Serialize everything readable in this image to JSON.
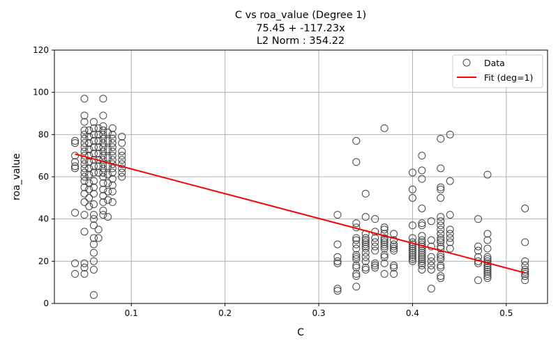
{
  "chart_data": {
    "type": "scatter",
    "title_lines": [
      "C vs roa_value (Degree 1)",
      "75.45 + -117.23x",
      "L2 Norm : 354.22"
    ],
    "xlabel": "C",
    "ylabel": "roa_value",
    "xlim": [
      0.018,
      0.544
    ],
    "ylim": [
      0,
      120
    ],
    "x_ticks": [
      0.1,
      0.2,
      0.3,
      0.4,
      0.5
    ],
    "x_tick_labels": [
      "0.1",
      "0.2",
      "0.3",
      "0.4",
      "0.5"
    ],
    "y_ticks": [
      0,
      20,
      40,
      60,
      80,
      100,
      120
    ],
    "y_tick_labels": [
      "0",
      "20",
      "40",
      "60",
      "80",
      "100",
      "120"
    ],
    "grid": true,
    "legend_position": "top-right",
    "legend": [
      {
        "label": "Data",
        "kind": "hollow-circle",
        "color": "#444444"
      },
      {
        "label": "Fit (deg=1)",
        "kind": "line",
        "color": "#ff0000"
      }
    ],
    "fit": {
      "intercept": 75.45,
      "slope": -117.23,
      "x_start": 0.04,
      "x_end": 0.52,
      "color": "#ff0000"
    },
    "series": [
      {
        "name": "Data",
        "marker": "hollow-circle",
        "color": "#444444",
        "points": [
          [
            0.04,
            77
          ],
          [
            0.04,
            76
          ],
          [
            0.04,
            70
          ],
          [
            0.04,
            67
          ],
          [
            0.04,
            65
          ],
          [
            0.04,
            64
          ],
          [
            0.04,
            43
          ],
          [
            0.04,
            19
          ],
          [
            0.04,
            14
          ],
          [
            0.05,
            97
          ],
          [
            0.05,
            89
          ],
          [
            0.05,
            86
          ],
          [
            0.05,
            82
          ],
          [
            0.05,
            80
          ],
          [
            0.05,
            78
          ],
          [
            0.05,
            76
          ],
          [
            0.05,
            74
          ],
          [
            0.05,
            72
          ],
          [
            0.05,
            70
          ],
          [
            0.05,
            68
          ],
          [
            0.05,
            66
          ],
          [
            0.05,
            64
          ],
          [
            0.05,
            62
          ],
          [
            0.05,
            60
          ],
          [
            0.05,
            58
          ],
          [
            0.05,
            55
          ],
          [
            0.05,
            52
          ],
          [
            0.05,
            48
          ],
          [
            0.05,
            42
          ],
          [
            0.05,
            34
          ],
          [
            0.05,
            19
          ],
          [
            0.05,
            17
          ],
          [
            0.05,
            14
          ],
          [
            0.055,
            82
          ],
          [
            0.055,
            79
          ],
          [
            0.055,
            76
          ],
          [
            0.055,
            73
          ],
          [
            0.055,
            70
          ],
          [
            0.055,
            67
          ],
          [
            0.055,
            64
          ],
          [
            0.055,
            61
          ],
          [
            0.055,
            57
          ],
          [
            0.055,
            54
          ],
          [
            0.055,
            50
          ],
          [
            0.055,
            46
          ],
          [
            0.06,
            86
          ],
          [
            0.06,
            83
          ],
          [
            0.06,
            80
          ],
          [
            0.06,
            77
          ],
          [
            0.06,
            74
          ],
          [
            0.06,
            71
          ],
          [
            0.06,
            68
          ],
          [
            0.06,
            65
          ],
          [
            0.06,
            62
          ],
          [
            0.06,
            58
          ],
          [
            0.06,
            55
          ],
          [
            0.06,
            52
          ],
          [
            0.06,
            47
          ],
          [
            0.06,
            42
          ],
          [
            0.06,
            40
          ],
          [
            0.06,
            37
          ],
          [
            0.06,
            31
          ],
          [
            0.06,
            28
          ],
          [
            0.06,
            24
          ],
          [
            0.06,
            20
          ],
          [
            0.06,
            16
          ],
          [
            0.06,
            4
          ],
          [
            0.065,
            83
          ],
          [
            0.065,
            80
          ],
          [
            0.065,
            77
          ],
          [
            0.065,
            74
          ],
          [
            0.065,
            71
          ],
          [
            0.065,
            68
          ],
          [
            0.065,
            65
          ],
          [
            0.065,
            62
          ],
          [
            0.065,
            35
          ],
          [
            0.065,
            31
          ],
          [
            0.07,
            97
          ],
          [
            0.07,
            89
          ],
          [
            0.07,
            84
          ],
          [
            0.07,
            82
          ],
          [
            0.07,
            80
          ],
          [
            0.07,
            78
          ],
          [
            0.07,
            76
          ],
          [
            0.07,
            74
          ],
          [
            0.07,
            72
          ],
          [
            0.07,
            70
          ],
          [
            0.07,
            68
          ],
          [
            0.07,
            66
          ],
          [
            0.07,
            64
          ],
          [
            0.07,
            62
          ],
          [
            0.07,
            60
          ],
          [
            0.07,
            57
          ],
          [
            0.07,
            54
          ],
          [
            0.07,
            51
          ],
          [
            0.07,
            48
          ],
          [
            0.07,
            44
          ],
          [
            0.07,
            42
          ],
          [
            0.075,
            81
          ],
          [
            0.075,
            77
          ],
          [
            0.075,
            73
          ],
          [
            0.075,
            69
          ],
          [
            0.075,
            65
          ],
          [
            0.075,
            61
          ],
          [
            0.075,
            57
          ],
          [
            0.075,
            53
          ],
          [
            0.075,
            49
          ],
          [
            0.075,
            41
          ],
          [
            0.08,
            83
          ],
          [
            0.08,
            80
          ],
          [
            0.08,
            78
          ],
          [
            0.08,
            76
          ],
          [
            0.08,
            74
          ],
          [
            0.08,
            72
          ],
          [
            0.08,
            70
          ],
          [
            0.08,
            68
          ],
          [
            0.08,
            66
          ],
          [
            0.08,
            64
          ],
          [
            0.08,
            62
          ],
          [
            0.08,
            59
          ],
          [
            0.08,
            56
          ],
          [
            0.08,
            53
          ],
          [
            0.08,
            48
          ],
          [
            0.09,
            79
          ],
          [
            0.09,
            76
          ],
          [
            0.09,
            72
          ],
          [
            0.09,
            70
          ],
          [
            0.09,
            68
          ],
          [
            0.09,
            66
          ],
          [
            0.09,
            64
          ],
          [
            0.09,
            62
          ],
          [
            0.09,
            60
          ],
          [
            0.32,
            42
          ],
          [
            0.32,
            28
          ],
          [
            0.32,
            22
          ],
          [
            0.32,
            20
          ],
          [
            0.32,
            19
          ],
          [
            0.32,
            7
          ],
          [
            0.32,
            6
          ],
          [
            0.34,
            77
          ],
          [
            0.34,
            67
          ],
          [
            0.34,
            38
          ],
          [
            0.34,
            36
          ],
          [
            0.34,
            31
          ],
          [
            0.34,
            30
          ],
          [
            0.34,
            28
          ],
          [
            0.34,
            26
          ],
          [
            0.34,
            23
          ],
          [
            0.34,
            22
          ],
          [
            0.34,
            21
          ],
          [
            0.34,
            18
          ],
          [
            0.34,
            17
          ],
          [
            0.34,
            14
          ],
          [
            0.34,
            13
          ],
          [
            0.34,
            8
          ],
          [
            0.35,
            52
          ],
          [
            0.35,
            41
          ],
          [
            0.35,
            33
          ],
          [
            0.35,
            31
          ],
          [
            0.35,
            30
          ],
          [
            0.35,
            29
          ],
          [
            0.35,
            28
          ],
          [
            0.35,
            27
          ],
          [
            0.35,
            26
          ],
          [
            0.35,
            24
          ],
          [
            0.35,
            22
          ],
          [
            0.35,
            20
          ],
          [
            0.35,
            17
          ],
          [
            0.35,
            16
          ],
          [
            0.36,
            40
          ],
          [
            0.36,
            34
          ],
          [
            0.36,
            31
          ],
          [
            0.36,
            29
          ],
          [
            0.36,
            27
          ],
          [
            0.36,
            25
          ],
          [
            0.36,
            19
          ],
          [
            0.36,
            18
          ],
          [
            0.36,
            17
          ],
          [
            0.37,
            83
          ],
          [
            0.37,
            36
          ],
          [
            0.37,
            35
          ],
          [
            0.37,
            33
          ],
          [
            0.37,
            31
          ],
          [
            0.37,
            30
          ],
          [
            0.37,
            29
          ],
          [
            0.37,
            28
          ],
          [
            0.37,
            27
          ],
          [
            0.37,
            26
          ],
          [
            0.37,
            23
          ],
          [
            0.37,
            22
          ],
          [
            0.37,
            19
          ],
          [
            0.37,
            14
          ],
          [
            0.38,
            33
          ],
          [
            0.38,
            30
          ],
          [
            0.38,
            28
          ],
          [
            0.38,
            27
          ],
          [
            0.38,
            26
          ],
          [
            0.38,
            25
          ],
          [
            0.38,
            18
          ],
          [
            0.38,
            17
          ],
          [
            0.38,
            14
          ],
          [
            0.4,
            62
          ],
          [
            0.4,
            54
          ],
          [
            0.4,
            50
          ],
          [
            0.4,
            37
          ],
          [
            0.4,
            31
          ],
          [
            0.4,
            29
          ],
          [
            0.4,
            28
          ],
          [
            0.4,
            27
          ],
          [
            0.4,
            26
          ],
          [
            0.4,
            25
          ],
          [
            0.4,
            24
          ],
          [
            0.4,
            23
          ],
          [
            0.4,
            22
          ],
          [
            0.4,
            21
          ],
          [
            0.4,
            20
          ],
          [
            0.41,
            70
          ],
          [
            0.41,
            63
          ],
          [
            0.41,
            59
          ],
          [
            0.41,
            45
          ],
          [
            0.41,
            38
          ],
          [
            0.41,
            37
          ],
          [
            0.41,
            32
          ],
          [
            0.41,
            30
          ],
          [
            0.41,
            29
          ],
          [
            0.41,
            28
          ],
          [
            0.41,
            27
          ],
          [
            0.41,
            26
          ],
          [
            0.41,
            25
          ],
          [
            0.41,
            24
          ],
          [
            0.41,
            23
          ],
          [
            0.41,
            22
          ],
          [
            0.41,
            21
          ],
          [
            0.41,
            20
          ],
          [
            0.41,
            19
          ],
          [
            0.41,
            18
          ],
          [
            0.41,
            16
          ],
          [
            0.42,
            39
          ],
          [
            0.42,
            30
          ],
          [
            0.42,
            27
          ],
          [
            0.42,
            22
          ],
          [
            0.42,
            20
          ],
          [
            0.42,
            18
          ],
          [
            0.42,
            16
          ],
          [
            0.42,
            7
          ],
          [
            0.43,
            78
          ],
          [
            0.43,
            64
          ],
          [
            0.43,
            55
          ],
          [
            0.43,
            54
          ],
          [
            0.43,
            50
          ],
          [
            0.43,
            41
          ],
          [
            0.43,
            39
          ],
          [
            0.43,
            37
          ],
          [
            0.43,
            35
          ],
          [
            0.43,
            33
          ],
          [
            0.43,
            31
          ],
          [
            0.43,
            30
          ],
          [
            0.43,
            29
          ],
          [
            0.43,
            27
          ],
          [
            0.43,
            26
          ],
          [
            0.43,
            23
          ],
          [
            0.43,
            22
          ],
          [
            0.43,
            21
          ],
          [
            0.43,
            18
          ],
          [
            0.43,
            17
          ],
          [
            0.43,
            13
          ],
          [
            0.43,
            12
          ],
          [
            0.44,
            80
          ],
          [
            0.44,
            58
          ],
          [
            0.44,
            42
          ],
          [
            0.44,
            35
          ],
          [
            0.44,
            33
          ],
          [
            0.44,
            31
          ],
          [
            0.44,
            29
          ],
          [
            0.44,
            26
          ],
          [
            0.47,
            40
          ],
          [
            0.47,
            27
          ],
          [
            0.47,
            25
          ],
          [
            0.47,
            22
          ],
          [
            0.47,
            20
          ],
          [
            0.47,
            19
          ],
          [
            0.47,
            11
          ],
          [
            0.48,
            61
          ],
          [
            0.48,
            33
          ],
          [
            0.48,
            30
          ],
          [
            0.48,
            26
          ],
          [
            0.48,
            22
          ],
          [
            0.48,
            21
          ],
          [
            0.48,
            20
          ],
          [
            0.48,
            19
          ],
          [
            0.48,
            18
          ],
          [
            0.48,
            17
          ],
          [
            0.48,
            16
          ],
          [
            0.48,
            15
          ],
          [
            0.48,
            14
          ],
          [
            0.48,
            13
          ],
          [
            0.48,
            12
          ],
          [
            0.52,
            45
          ],
          [
            0.52,
            29
          ],
          [
            0.52,
            20
          ],
          [
            0.52,
            18
          ],
          [
            0.52,
            16
          ],
          [
            0.52,
            15
          ],
          [
            0.52,
            14
          ],
          [
            0.52,
            13
          ],
          [
            0.52,
            11
          ]
        ]
      }
    ]
  }
}
